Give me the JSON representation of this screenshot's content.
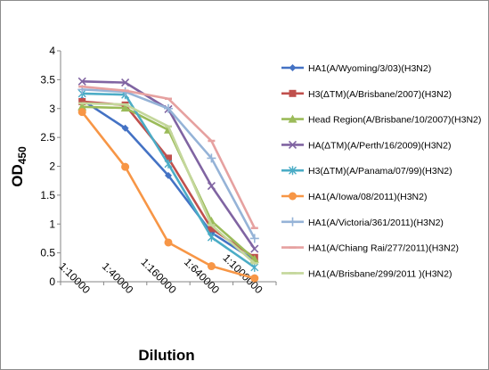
{
  "chart_data": {
    "type": "line",
    "title": "",
    "xlabel": "Dilution",
    "ylabel": "OD",
    "ylabel_subscript": "450",
    "categories": [
      "1:10000",
      "1:40000",
      "1:160000",
      "1:640000",
      "1:1000000"
    ],
    "ylim": [
      0,
      4
    ],
    "yticks": [
      "0",
      "0.5",
      "1",
      "1.5",
      "2",
      "2.5",
      "3",
      "3.5",
      "4"
    ],
    "grid": false,
    "legend_position": "right",
    "series": [
      {
        "name": "HA1(A/Wyoming/3/03)(H3N2)",
        "color": "#4472c4",
        "marker": "diamond",
        "values": [
          3.15,
          2.66,
          1.84,
          0.85,
          0.37
        ]
      },
      {
        "name": "H3(ΔTM)(A/Brisbane/2007)(H3N2)",
        "color": "#c0504d",
        "marker": "square",
        "values": [
          3.12,
          3.06,
          2.14,
          0.92,
          0.42
        ]
      },
      {
        "name": "Head Region(A/Brisbane/10/2007)(H3N2)",
        "color": "#9bbb59",
        "marker": "triangle",
        "values": [
          3.03,
          3.01,
          2.63,
          1.05,
          0.39
        ]
      },
      {
        "name": "HA(ΔTM)(A/Perth/16/2009)(H3N2)",
        "color": "#8064a2",
        "marker": "x",
        "values": [
          3.47,
          3.45,
          2.99,
          1.66,
          0.57
        ]
      },
      {
        "name": "H3(ΔTM)(A/Panama/07/99)(H3N2)",
        "color": "#4bacc6",
        "marker": "star",
        "values": [
          3.26,
          3.24,
          2.04,
          0.77,
          0.25
        ]
      },
      {
        "name": "HA1(A/Iowa/08/2011)(H3N2)",
        "color": "#f79646",
        "marker": "circle",
        "values": [
          2.94,
          1.99,
          0.68,
          0.27,
          0.06
        ]
      },
      {
        "name": "HA1(A/Victoria/361/2011)(H3N2)",
        "color": "#95b3d7",
        "marker": "plus",
        "values": [
          3.33,
          3.29,
          3.0,
          2.14,
          0.75
        ]
      },
      {
        "name": "HA1(A/Chiang Rai/277/2011)(H3N2)",
        "color": "#e6a1a0",
        "marker": "dash",
        "values": [
          3.38,
          3.31,
          3.17,
          2.44,
          0.93
        ]
      },
      {
        "name": "HA1(A/Brisbane/299/2011 )(H3N2)",
        "color": "#c4d79b",
        "marker": "dash",
        "values": [
          3.09,
          3.07,
          2.69,
          0.98,
          0.32
        ]
      }
    ]
  }
}
